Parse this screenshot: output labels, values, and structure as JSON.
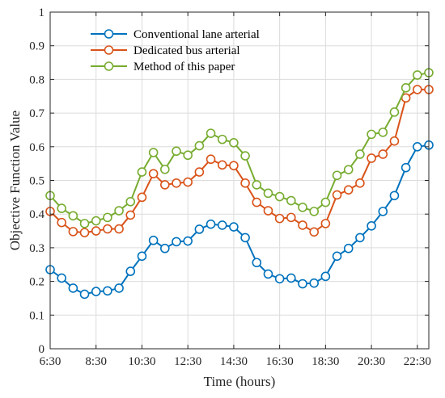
{
  "chart_data": {
    "type": "line",
    "title": "",
    "xlabel": "Time (hours)",
    "ylabel": "Objective Function Value",
    "xlim": [
      0,
      33
    ],
    "ylim": [
      0,
      1
    ],
    "grid": true,
    "legend_position": "top-left",
    "x_ticks": [
      {
        "pos": 0,
        "label": "6:30"
      },
      {
        "pos": 4,
        "label": "8:30"
      },
      {
        "pos": 8,
        "label": "10:30"
      },
      {
        "pos": 12,
        "label": "12:30"
      },
      {
        "pos": 16,
        "label": "14:30"
      },
      {
        "pos": 20,
        "label": "16:30"
      },
      {
        "pos": 24,
        "label": "18:30"
      },
      {
        "pos": 28,
        "label": "20:30"
      },
      {
        "pos": 32,
        "label": "22:30"
      }
    ],
    "y_ticks": [
      {
        "pos": 0,
        "label": "0"
      },
      {
        "pos": 0.1,
        "label": "0.1"
      },
      {
        "pos": 0.2,
        "label": "0.2"
      },
      {
        "pos": 0.3,
        "label": "0.3"
      },
      {
        "pos": 0.4,
        "label": "0.4"
      },
      {
        "pos": 0.5,
        "label": "0.5"
      },
      {
        "pos": 0.6,
        "label": "0.6"
      },
      {
        "pos": 0.7,
        "label": "0.7"
      },
      {
        "pos": 0.8,
        "label": "0.8"
      },
      {
        "pos": 0.9,
        "label": "0.9"
      },
      {
        "pos": 1,
        "label": "1"
      }
    ],
    "x": [
      0,
      1,
      2,
      3,
      4,
      5,
      6,
      7,
      8,
      9,
      10,
      11,
      12,
      13,
      14,
      15,
      16,
      17,
      18,
      19,
      20,
      21,
      22,
      23,
      24,
      25,
      26,
      27,
      28,
      29,
      30,
      31,
      32,
      33
    ],
    "series": [
      {
        "name": "Conventional lane arterial",
        "color": "#0072bd",
        "values": [
          0.235,
          0.21,
          0.18,
          0.162,
          0.17,
          0.172,
          0.18,
          0.23,
          0.275,
          0.322,
          0.298,
          0.318,
          0.32,
          0.355,
          0.37,
          0.367,
          0.362,
          0.33,
          0.256,
          0.222,
          0.208,
          0.21,
          0.193,
          0.195,
          0.215,
          0.275,
          0.298,
          0.33,
          0.365,
          0.408,
          0.455,
          0.538,
          0.6,
          0.605
        ]
      },
      {
        "name": "Dedicated bus arterial",
        "color": "#d95319",
        "values": [
          0.408,
          0.375,
          0.348,
          0.345,
          0.35,
          0.356,
          0.356,
          0.397,
          0.45,
          0.52,
          0.487,
          0.492,
          0.495,
          0.525,
          0.563,
          0.546,
          0.544,
          0.492,
          0.435,
          0.41,
          0.387,
          0.39,
          0.367,
          0.347,
          0.372,
          0.457,
          0.472,
          0.492,
          0.566,
          0.578,
          0.617,
          0.745,
          0.77,
          0.77
        ]
      },
      {
        "name": "Method of this paper",
        "color": "#77ac30",
        "values": [
          0.455,
          0.417,
          0.395,
          0.372,
          0.38,
          0.39,
          0.41,
          0.437,
          0.525,
          0.583,
          0.533,
          0.587,
          0.575,
          0.603,
          0.64,
          0.622,
          0.612,
          0.573,
          0.487,
          0.462,
          0.452,
          0.44,
          0.42,
          0.408,
          0.435,
          0.515,
          0.532,
          0.578,
          0.637,
          0.643,
          0.703,
          0.775,
          0.813,
          0.82
        ]
      }
    ]
  }
}
